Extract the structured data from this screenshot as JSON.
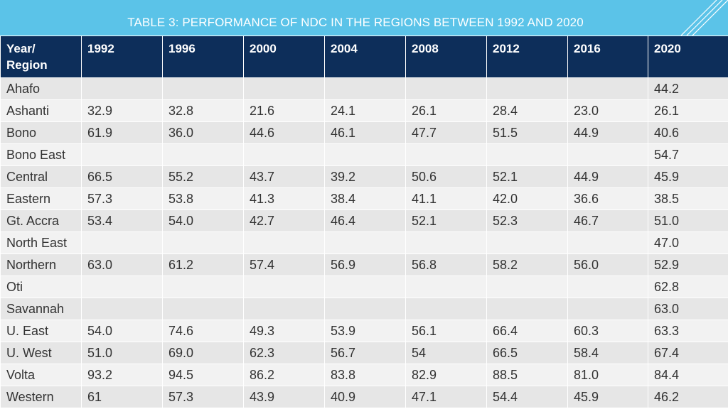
{
  "title": "TABLE 3: PERFORMANCE OF NDC IN THE REGIONS BETWEEN 1992 AND 2020",
  "colors": {
    "banner": "#5bc3e8",
    "header_bg": "#0d2e5a",
    "row_odd": "#e6e6e6",
    "row_even": "#f2f2f2"
  },
  "table": {
    "header_first": [
      "Year/",
      "Region"
    ],
    "years": [
      "1992",
      "1996",
      "2000",
      "2004",
      "2008",
      "2012",
      "2016",
      "2020"
    ],
    "rows": [
      {
        "region": "Ahafo",
        "values": [
          "",
          "",
          "",
          "",
          "",
          "",
          "",
          "44.2"
        ]
      },
      {
        "region": "Ashanti",
        "values": [
          "32.9",
          "32.8",
          "21.6",
          "24.1",
          "26.1",
          "28.4",
          "23.0",
          "26.1"
        ]
      },
      {
        "region": "Bono",
        "values": [
          "61.9",
          "36.0",
          "44.6",
          "46.1",
          "47.7",
          "51.5",
          "44.9",
          "40.6"
        ]
      },
      {
        "region": "Bono East",
        "values": [
          "",
          "",
          "",
          "",
          "",
          "",
          "",
          "54.7"
        ]
      },
      {
        "region": "Central",
        "values": [
          "66.5",
          "55.2",
          "43.7",
          "39.2",
          "50.6",
          "52.1",
          "44.9",
          "45.9"
        ]
      },
      {
        "region": "Eastern",
        "values": [
          "57.3",
          "53.8",
          "41.3",
          "38.4",
          "41.1",
          "42.0",
          "36.6",
          "38.5"
        ]
      },
      {
        "region": "Gt. Accra",
        "values": [
          "53.4",
          "54.0",
          "42.7",
          "46.4",
          "52.1",
          "52.3",
          "46.7",
          "51.0"
        ]
      },
      {
        "region": "North East",
        "values": [
          "",
          "",
          "",
          "",
          "",
          "",
          "",
          "47.0"
        ]
      },
      {
        "region": "Northern",
        "values": [
          "63.0",
          "61.2",
          "57.4",
          "56.9",
          "56.8",
          "58.2",
          "56.0",
          "52.9"
        ]
      },
      {
        "region": "Oti",
        "values": [
          "",
          "",
          "",
          "",
          "",
          "",
          "",
          "62.8"
        ]
      },
      {
        "region": "Savannah",
        "values": [
          "",
          "",
          "",
          "",
          "",
          "",
          "",
          "63.0"
        ]
      },
      {
        "region": "U. East",
        "values": [
          "54.0",
          "74.6",
          "49.3",
          "53.9",
          "56.1",
          "66.4",
          "60.3",
          "63.3"
        ]
      },
      {
        "region": "U. West",
        "values": [
          "51.0",
          "69.0",
          "62.3",
          "56.7",
          "54",
          "66.5",
          "58.4",
          "67.4"
        ]
      },
      {
        "region": "Volta",
        "values": [
          "93.2",
          "94.5",
          "86.2",
          "83.8",
          "82.9",
          "88.5",
          "81.0",
          "84.4"
        ]
      },
      {
        "region": "Western",
        "values": [
          "61",
          "57.3",
          "43.9",
          "40.9",
          "47.1",
          "54.4",
          "45.9",
          "46.2"
        ]
      }
    ]
  }
}
